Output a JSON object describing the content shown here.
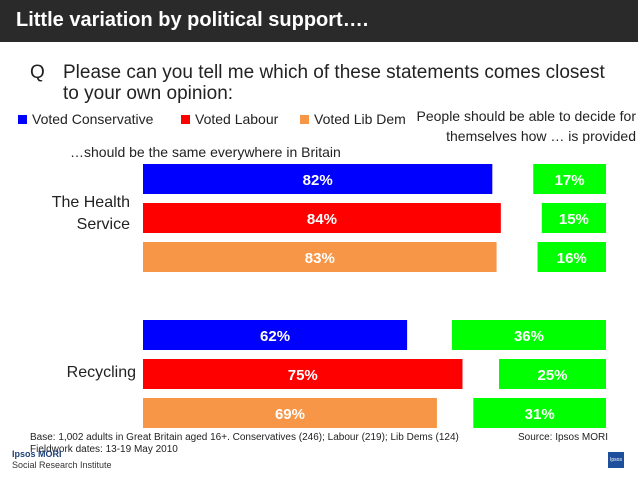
{
  "header": {
    "title": "Little variation by political support…."
  },
  "question": {
    "label": "Q",
    "text": "Please can you tell me which of these statements comes closest to your own opinion:"
  },
  "legend": [
    {
      "label": "Voted Conservative",
      "color": "#0000ff"
    },
    {
      "label": "Voted Labour",
      "color": "#ff0000"
    },
    {
      "label": "Voted Lib Dem",
      "color": "#f79646"
    }
  ],
  "chart_data": {
    "type": "bar",
    "orientation": "horizontal",
    "left_statement": "…should be the same everywhere in Britain",
    "right_statement": "People should be able to decide for themselves how … is provided",
    "groups": [
      "The Health Service",
      "Recycling"
    ],
    "series": [
      {
        "name": "Voted Conservative",
        "color": "#0000ff",
        "same_everywhere": [
          82,
          62
        ],
        "decide_themselves": [
          17,
          36
        ]
      },
      {
        "name": "Voted Labour",
        "color": "#ff0000",
        "same_everywhere": [
          84,
          75
        ],
        "decide_themselves": [
          15,
          25
        ]
      },
      {
        "name": "Voted Lib Dem",
        "color": "#f79646",
        "same_everywhere": [
          83,
          69
        ],
        "decide_themselves": [
          16,
          31
        ]
      }
    ],
    "right_color": "#00ff00",
    "unit": "%"
  },
  "footer": {
    "base": "Base: 1,002 adults in Great Britain aged 16+. Conservatives (246); Labour (219); Lib Dems (124) Fieldwork dates: 13-19 May 2010",
    "source": "Source: Ipsos MORI"
  },
  "logo": {
    "brand": "Ipsos MORI",
    "sub": "Social Research Institute",
    "mark": "Ipsos"
  }
}
